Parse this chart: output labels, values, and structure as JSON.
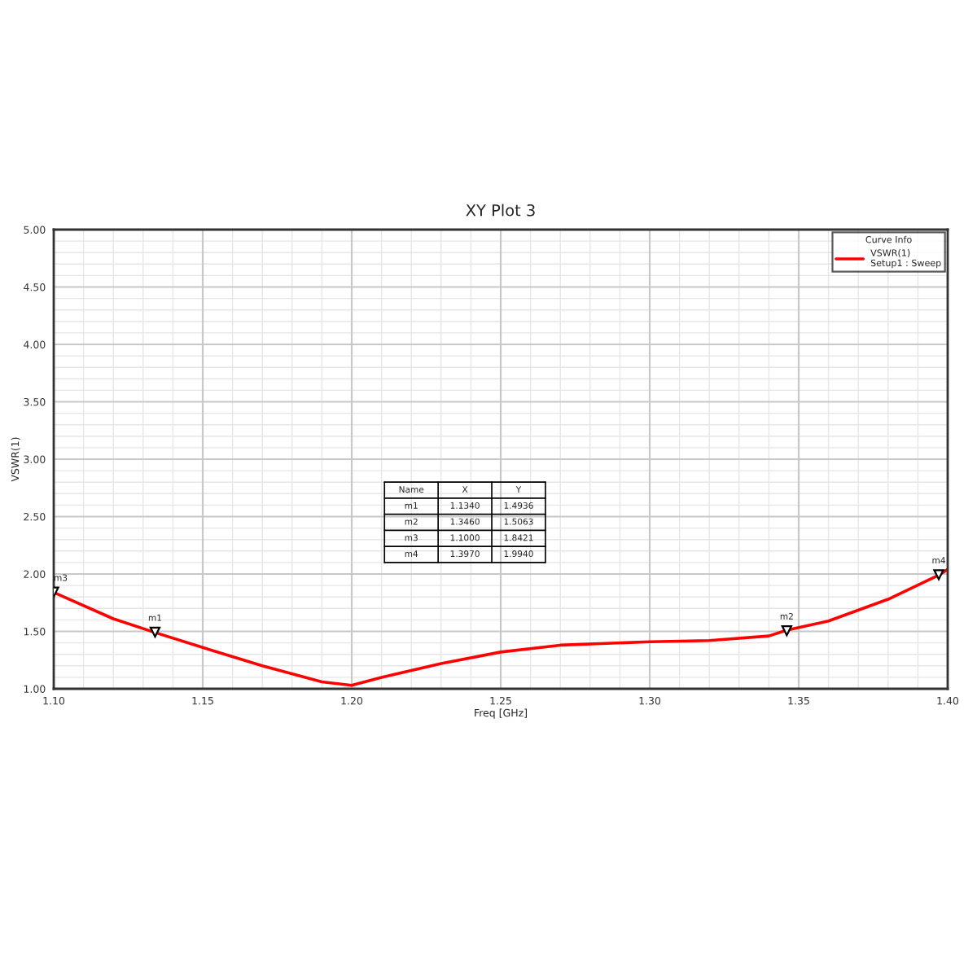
{
  "chart_data": {
    "type": "line",
    "title": "XY Plot 3",
    "xlabel": "Freq [GHz]",
    "ylabel": "VSWR(1)",
    "legend_title": "Curve Info",
    "series": [
      {
        "name": "VSWR(1)\nSetup1 : Sweep",
        "color": "#ff0000",
        "x": [
          1.1,
          1.12,
          1.134,
          1.15,
          1.17,
          1.19,
          1.2,
          1.21,
          1.23,
          1.25,
          1.27,
          1.3,
          1.32,
          1.34,
          1.346,
          1.36,
          1.38,
          1.397,
          1.4
        ],
        "values": [
          1.84,
          1.61,
          1.49,
          1.36,
          1.2,
          1.06,
          1.03,
          1.1,
          1.22,
          1.32,
          1.38,
          1.41,
          1.42,
          1.46,
          1.51,
          1.59,
          1.78,
          1.99,
          2.04
        ]
      }
    ],
    "annotations": [
      {
        "text": "m1",
        "x": 1.134,
        "y": 1.4936
      },
      {
        "text": "m2",
        "x": 1.346,
        "y": 1.5063
      },
      {
        "text": "m3",
        "x": 1.1,
        "y": 1.8421
      },
      {
        "text": "m4",
        "x": 1.397,
        "y": 1.994
      },
      "Name",
      "X",
      "Y",
      "m1",
      "1.1340",
      "1.4936",
      "m2",
      "1.3460",
      "1.5063",
      "m3",
      "1.1000",
      "1.8421",
      "m4",
      "1.3970",
      "1.9940"
    ],
    "xlim": [
      1.1,
      1.4
    ],
    "xticks": [
      {
        "value": 1.1,
        "label": "1.10"
      },
      1.15,
      {
        "value": 1.2,
        "label": "1.20"
      },
      1.25,
      {
        "value": 1.3,
        "label": "1.30"
      },
      1.35,
      {
        "value": 1.4,
        "label": "1.40"
      }
    ],
    "ylim": [
      1.0,
      5.0
    ],
    "yticks": [
      {
        "value": 1.0,
        "label": "1.00"
      },
      {
        "value": 1.5,
        "label": "1.50"
      },
      {
        "value": 2.0,
        "label": "2.00"
      },
      {
        "value": 2.5,
        "label": "2.50"
      },
      {
        "value": 3.0,
        "label": "3.00"
      },
      {
        "value": 3.5,
        "label": "3.50"
      },
      {
        "value": 4.0,
        "label": "4.00"
      },
      {
        "value": 4.5,
        "label": "4.50"
      },
      {
        "value": 5.0,
        "label": "5.00"
      }
    ],
    "grid": true,
    "legend": "top right",
    "marker": "none",
    "line_style": "solid"
  }
}
